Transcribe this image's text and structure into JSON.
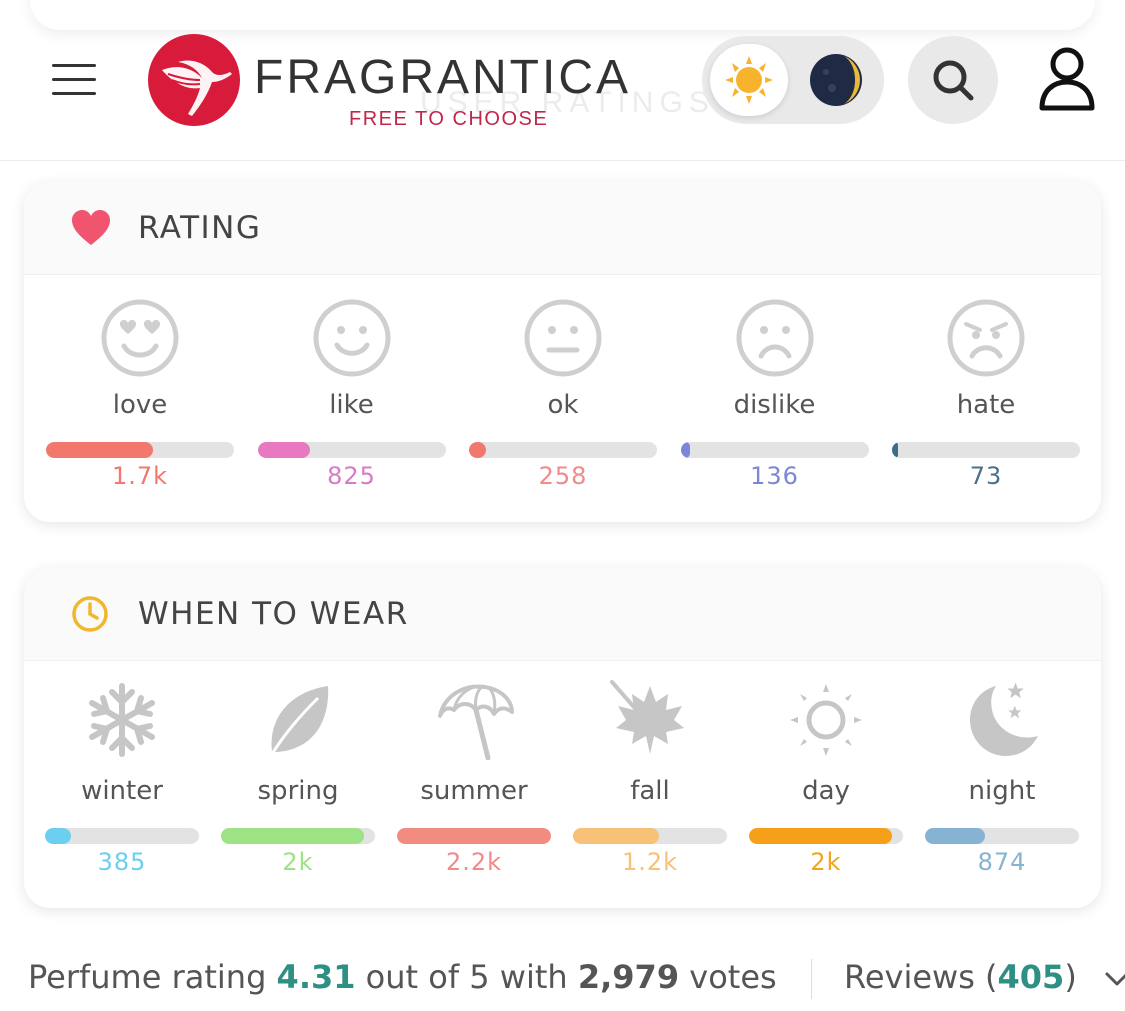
{
  "header": {
    "brand": "FRAGRANTICA",
    "tagline": "FREE TO CHOOSE",
    "ghost_heading": "USER RATINGS"
  },
  "rating": {
    "title": "RATING",
    "items": [
      {
        "label": "love",
        "value": "1.7k",
        "fraction": 0.57,
        "color": "#f2776d",
        "icon": "heart-eyes-face-icon"
      },
      {
        "label": "like",
        "value": "825",
        "fraction": 0.28,
        "color": "#e879c0",
        "icon": "smile-face-icon"
      },
      {
        "label": "ok",
        "value": "258",
        "fraction": 0.09,
        "color": "#f2776d",
        "icon": "neutral-face-icon"
      },
      {
        "label": "dislike",
        "value": "136",
        "fraction": 0.05,
        "color": "#7b86d8",
        "icon": "frown-face-icon"
      },
      {
        "label": "hate",
        "value": "73",
        "fraction": 0.02,
        "color": "#3e6d8c",
        "icon": "angry-face-icon"
      }
    ],
    "value_colors": [
      "#f2776d",
      "#d97ac4",
      "#f2898a",
      "#7b86d8",
      "#4a6f8a"
    ]
  },
  "when_to_wear": {
    "title": "WHEN TO WEAR",
    "items": [
      {
        "label": "winter",
        "value": "385",
        "fraction": 0.17,
        "color": "#6dcff0",
        "icon": "snowflake-icon"
      },
      {
        "label": "spring",
        "value": "2k",
        "fraction": 0.93,
        "color": "#9de283",
        "icon": "leaf-icon"
      },
      {
        "label": "summer",
        "value": "2.2k",
        "fraction": 1.0,
        "color": "#f28b80",
        "icon": "umbrella-icon"
      },
      {
        "label": "fall",
        "value": "1.2k",
        "fraction": 0.56,
        "color": "#f7c178",
        "icon": "maple-leaf-icon"
      },
      {
        "label": "day",
        "value": "2k",
        "fraction": 0.93,
        "color": "#f5a018",
        "icon": "sun-icon"
      },
      {
        "label": "night",
        "value": "874",
        "fraction": 0.39,
        "color": "#86b3d4",
        "icon": "moon-stars-icon"
      }
    ],
    "value_colors": [
      "#6dcff0",
      "#9de283",
      "#f2898a",
      "#f7c178",
      "#f0a51e",
      "#86b3d4"
    ]
  },
  "footer": {
    "perfume_rating_label": "Perfume rating",
    "rating_value": "4.31",
    "out_of": "out of 5 with",
    "votes_count": "2,979",
    "votes_label": "votes",
    "reviews_label": "Reviews (",
    "reviews_count": "405",
    "reviews_close": ")"
  }
}
